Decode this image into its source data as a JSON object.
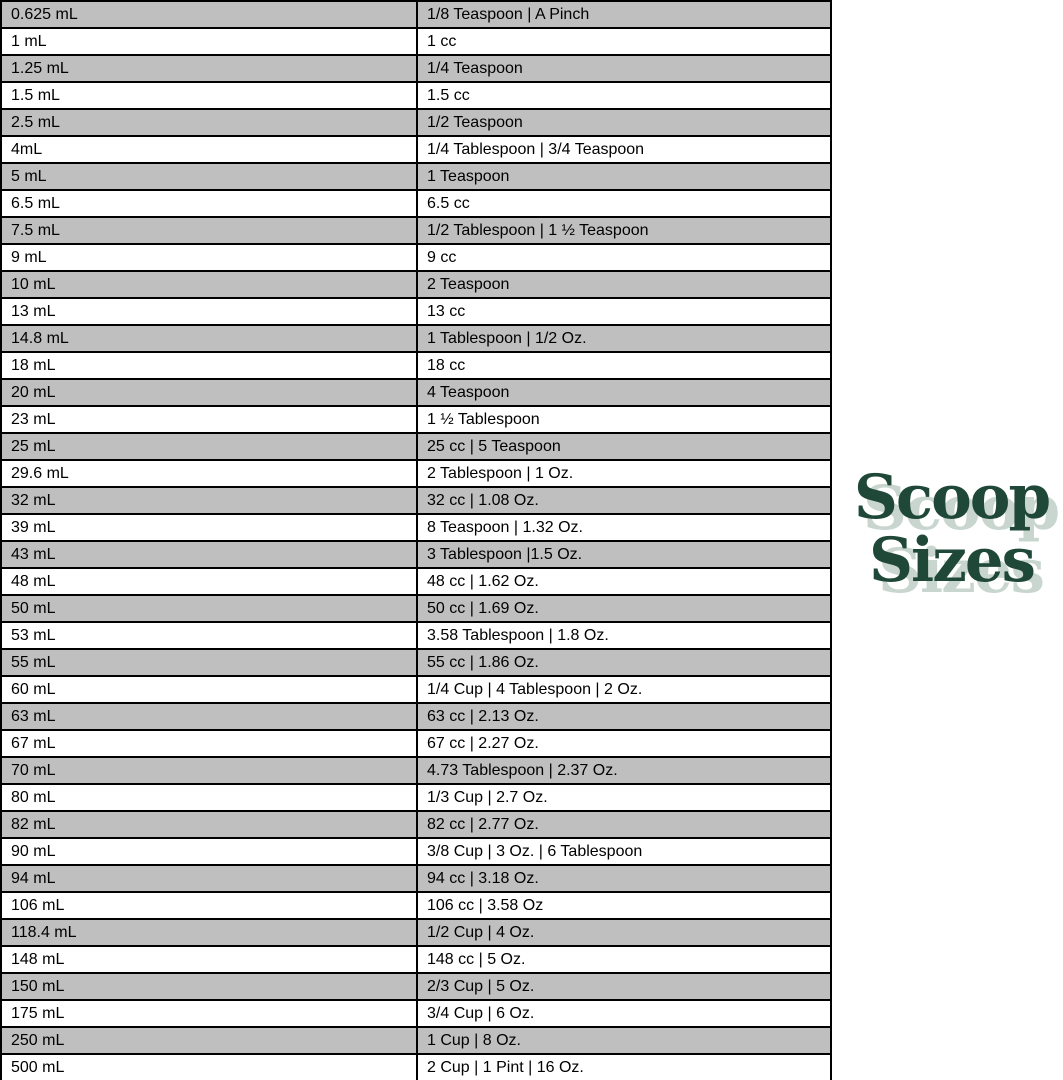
{
  "logo": {
    "line1": "Scoop",
    "line2": "Sizes",
    "color": "#1F4838",
    "shadow_color": "#C9D6D0"
  },
  "colors": {
    "row_alt": "#BFBFBF",
    "border": "#000000",
    "text": "#000000",
    "background": "#FFFFFF"
  },
  "table": {
    "columns": [
      "milliliters",
      "conversion"
    ],
    "rows": [
      {
        "ml": "0.625 mL",
        "conversion": "1/8 Teaspoon | A Pinch"
      },
      {
        "ml": "1 mL",
        "conversion": "1 cc"
      },
      {
        "ml": "1.25 mL",
        "conversion": "1/4 Teaspoon"
      },
      {
        "ml": "1.5 mL",
        "conversion": "1.5 cc"
      },
      {
        "ml": "2.5 mL",
        "conversion": "1/2 Teaspoon"
      },
      {
        "ml": "4mL",
        "conversion": "1/4 Tablespoon | 3/4 Teaspoon"
      },
      {
        "ml": "5 mL",
        "conversion": "1 Teaspoon"
      },
      {
        "ml": "6.5 mL",
        "conversion": "6.5 cc"
      },
      {
        "ml": "7.5 mL",
        "conversion": "1/2 Tablespoon | 1 ½ Teaspoon"
      },
      {
        "ml": "9 mL",
        "conversion": "9 cc"
      },
      {
        "ml": "10 mL",
        "conversion": "2 Teaspoon"
      },
      {
        "ml": "13 mL",
        "conversion": "13 cc"
      },
      {
        "ml": "14.8 mL",
        "conversion": "1 Tablespoon | 1/2 Oz."
      },
      {
        "ml": "18 mL",
        "conversion": "18 cc"
      },
      {
        "ml": "20 mL",
        "conversion": "4 Teaspoon"
      },
      {
        "ml": "23 mL",
        "conversion": "1 ½ Tablespoon"
      },
      {
        "ml": "25 mL",
        "conversion": "25 cc | 5 Teaspoon"
      },
      {
        "ml": "29.6 mL",
        "conversion": "2 Tablespoon | 1 Oz."
      },
      {
        "ml": "32 mL",
        "conversion": "32 cc | 1.08 Oz."
      },
      {
        "ml": "39 mL",
        "conversion": "8 Teaspoon | 1.32 Oz."
      },
      {
        "ml": "43 mL",
        "conversion": "3 Tablespoon |1.5 Oz."
      },
      {
        "ml": "48 mL",
        "conversion": "48 cc | 1.62 Oz."
      },
      {
        "ml": "50 mL",
        "conversion": "50 cc | 1.69 Oz."
      },
      {
        "ml": "53 mL",
        "conversion": "3.58 Tablespoon | 1.8 Oz."
      },
      {
        "ml": "55 mL",
        "conversion": "55 cc | 1.86 Oz."
      },
      {
        "ml": "60 mL",
        "conversion": "1/4 Cup | 4 Tablespoon | 2 Oz."
      },
      {
        "ml": "63 mL",
        "conversion": "63 cc | 2.13 Oz."
      },
      {
        "ml": "67 mL",
        "conversion": "67 cc | 2.27 Oz."
      },
      {
        "ml": "70 mL",
        "conversion": "4.73 Tablespoon | 2.37 Oz."
      },
      {
        "ml": "80 mL",
        "conversion": "1/3 Cup | 2.7 Oz."
      },
      {
        "ml": "82 mL",
        "conversion": "82 cc | 2.77 Oz."
      },
      {
        "ml": "90 mL",
        "conversion": "3/8 Cup | 3 Oz. | 6 Tablespoon"
      },
      {
        "ml": "94 mL",
        "conversion": "94 cc | 3.18 Oz."
      },
      {
        "ml": "106 mL",
        "conversion": "106 cc | 3.58 Oz"
      },
      {
        "ml": "118.4 mL",
        "conversion": "1/2 Cup | 4 Oz."
      },
      {
        "ml": "148 mL",
        "conversion": "148 cc | 5 Oz."
      },
      {
        "ml": "150 mL",
        "conversion": "2/3 Cup | 5 Oz."
      },
      {
        "ml": "175 mL",
        "conversion": "3/4 Cup | 6 Oz."
      },
      {
        "ml": "250 mL",
        "conversion": "1 Cup | 8 Oz."
      },
      {
        "ml": "500 mL",
        "conversion": "2 Cup | 1 Pint | 16 Oz."
      }
    ]
  }
}
